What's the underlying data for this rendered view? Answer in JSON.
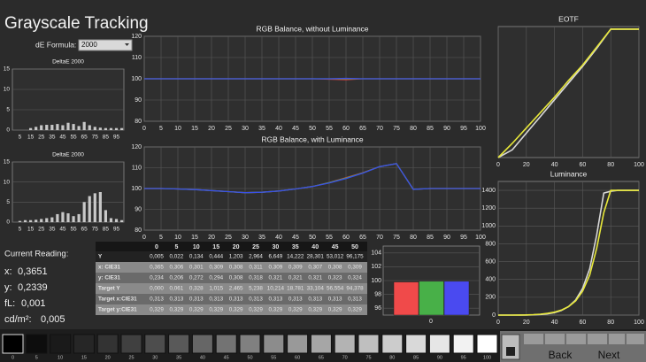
{
  "header": {
    "title": "Grayscale Tracking",
    "formula_label": "dE Formula:",
    "formula_value": "2000"
  },
  "deltae_top": {
    "type": "bar",
    "title": "DeltaE 2000",
    "color": "#c8c8c8",
    "x": [
      0,
      5,
      10,
      15,
      20,
      25,
      30,
      35,
      40,
      45,
      50,
      55,
      60,
      65,
      70,
      75,
      80,
      85,
      90,
      95,
      100
    ],
    "values": [
      0,
      0,
      0,
      0.5,
      0.8,
      1.2,
      1.3,
      1.3,
      1.5,
      1.2,
      1.8,
      1.5,
      1.0,
      2.0,
      1.2,
      0.8,
      0.6,
      0.5,
      0.5,
      0.5,
      0.5
    ],
    "xlim": [
      -2,
      102
    ],
    "xticks": [
      5,
      15,
      25,
      35,
      45,
      55,
      65,
      75,
      85,
      95
    ],
    "ylim": [
      0,
      15
    ],
    "yticks": [
      0,
      5,
      10,
      15
    ]
  },
  "deltae_bottom": {
    "type": "bar",
    "title": "DeltaE 2000",
    "color": "#c8c8c8",
    "x": [
      0,
      5,
      10,
      15,
      20,
      25,
      30,
      35,
      40,
      45,
      50,
      55,
      60,
      65,
      70,
      75,
      80,
      85,
      90,
      95,
      100
    ],
    "values": [
      0,
      0.3,
      0.5,
      0.5,
      0.6,
      0.8,
      1.0,
      1.2,
      2.0,
      2.5,
      2.2,
      1.5,
      2.0,
      5.0,
      6.5,
      7.2,
      7.5,
      3.0,
      1.0,
      0.8,
      0.5
    ],
    "xlim": [
      -2,
      102
    ],
    "xticks": [
      5,
      15,
      25,
      35,
      45,
      55,
      65,
      75,
      85,
      95
    ],
    "ylim": [
      0,
      15
    ],
    "yticks": [
      0,
      5,
      10,
      15
    ]
  },
  "rgb_balance": {
    "type": "line",
    "title": "RGB Balance, without Luminance",
    "x": [
      0,
      5,
      10,
      15,
      20,
      25,
      30,
      35,
      40,
      45,
      50,
      55,
      60,
      65,
      70,
      75,
      80,
      85,
      90,
      95,
      100
    ],
    "series": [
      {
        "color": "#e23b3b",
        "values": [
          100,
          100,
          100,
          100,
          100,
          100,
          100,
          100,
          100,
          100,
          100,
          99.8,
          99.6,
          100,
          100,
          100,
          100,
          100,
          100,
          100,
          100
        ]
      },
      {
        "color": "#3fbf3f",
        "values": [
          100,
          100,
          100,
          100,
          100,
          100,
          100,
          100,
          100,
          100,
          100,
          100,
          100,
          100,
          100,
          100,
          100,
          100,
          100,
          100,
          100
        ]
      },
      {
        "color": "#3a4fe8",
        "values": [
          100,
          100,
          100,
          100,
          100,
          100,
          100,
          100,
          100,
          100,
          100,
          100,
          100.2,
          100,
          100,
          100,
          100,
          100,
          100,
          100,
          100
        ]
      }
    ],
    "xlim": [
      0,
      100
    ],
    "xticks": [
      0,
      5,
      10,
      15,
      20,
      25,
      30,
      35,
      40,
      45,
      50,
      55,
      60,
      65,
      70,
      75,
      80,
      85,
      90,
      95,
      100
    ],
    "ylim": [
      80,
      120
    ],
    "yticks": [
      80,
      90,
      100,
      110,
      120
    ]
  },
  "rgb_balance_lum": {
    "type": "line",
    "title": "RGB Balance, with Luminance",
    "x": [
      0,
      5,
      10,
      15,
      20,
      25,
      30,
      35,
      40,
      45,
      50,
      55,
      60,
      65,
      70,
      75,
      80,
      85,
      90,
      95,
      100
    ],
    "series": [
      {
        "color": "#e23b3b",
        "values": [
          100,
          100,
          99.8,
          99.5,
          99,
          98.5,
          98,
          98.2,
          98.8,
          99.8,
          101,
          102.9,
          105.2,
          107.6,
          110.5,
          112,
          99.6,
          100,
          100,
          100,
          100
        ]
      },
      {
        "color": "#3fbf3f",
        "values": [
          100,
          100,
          99.8,
          99.5,
          99,
          98.5,
          98,
          98.2,
          98.8,
          99.8,
          101,
          102.8,
          105,
          107.5,
          110.5,
          112,
          99.6,
          100,
          100,
          100,
          100
        ]
      },
      {
        "color": "#3a4fe8",
        "values": [
          100,
          100,
          99.8,
          99.5,
          99,
          98.5,
          98,
          98.2,
          98.8,
          99.8,
          101,
          102.7,
          104.8,
          107.4,
          110.5,
          112,
          99.6,
          100,
          100,
          100,
          100
        ]
      }
    ],
    "xlim": [
      0,
      100
    ],
    "xticks": [
      0,
      5,
      10,
      15,
      20,
      25,
      30,
      35,
      40,
      45,
      50,
      55,
      60,
      65,
      70,
      75,
      80,
      85,
      90,
      95,
      100
    ],
    "ylim": [
      80,
      120
    ],
    "yticks": [
      80,
      90,
      100,
      110,
      120
    ]
  },
  "eotf": {
    "type": "line",
    "title": "EOTF",
    "x": [
      0,
      10,
      20,
      30,
      40,
      50,
      60,
      70,
      80,
      90,
      100
    ],
    "series": [
      {
        "color": "#d8d8d8",
        "values": [
          0,
          6,
          19,
          32,
          45,
          58,
          71,
          85,
          100,
          100,
          100
        ]
      },
      {
        "color": "#e8e83a",
        "values": [
          0,
          11,
          23,
          35,
          47,
          60,
          72,
          86,
          100,
          100,
          100
        ]
      }
    ],
    "xlim": [
      0,
      100
    ],
    "xticks": [
      0,
      20,
      40,
      60,
      80,
      100
    ],
    "ylim": [
      0,
      102
    ]
  },
  "luminance": {
    "type": "line",
    "title": "Luminance",
    "x": [
      0,
      5,
      10,
      15,
      20,
      25,
      30,
      35,
      40,
      45,
      50,
      55,
      60,
      65,
      70,
      75,
      80,
      85,
      90,
      95,
      100
    ],
    "series": [
      {
        "color": "#d8d8d8",
        "values": [
          0,
          0,
          0,
          0,
          1,
          3,
          7,
          14,
          28,
          53,
          96,
          170,
          300,
          520,
          900,
          1370,
          1390,
          1400,
          1400,
          1400,
          1400
        ]
      },
      {
        "color": "#e8e83a",
        "values": [
          0,
          0,
          0,
          1,
          2,
          5,
          10,
          19,
          33,
          57,
          94,
          160,
          270,
          450,
          750,
          1150,
          1400,
          1400,
          1400,
          1400,
          1400
        ]
      }
    ],
    "xlim": [
      0,
      100
    ],
    "xticks": [
      0,
      20,
      40,
      60,
      80,
      100
    ],
    "ylim": [
      0,
      1500
    ],
    "yticks": [
      0,
      200,
      400,
      600,
      800,
      1000,
      1200,
      1400
    ]
  },
  "reading": {
    "title": "Current Reading:",
    "items": [
      [
        "x:",
        "0,3651"
      ],
      [
        "y:",
        "0,2339"
      ],
      [
        "fL:",
        "0,001"
      ],
      [
        "cd/m²:",
        "0,005"
      ]
    ]
  },
  "table": {
    "columns": [
      "0",
      "5",
      "10",
      "15",
      "20",
      "25",
      "30",
      "35",
      "40",
      "45",
      "50"
    ],
    "rows": [
      [
        "Y",
        "0,005",
        "0,022",
        "0,134",
        "0,444",
        "1,203",
        "2,964",
        "6,649",
        "14,222",
        "28,301",
        "53,012",
        "96,175"
      ],
      [
        "x: CIE31",
        "0,365",
        "0,306",
        "0,301",
        "0,309",
        "0,308",
        "0,311",
        "0,309",
        "0,309",
        "0,307",
        "0,308",
        "0,309"
      ],
      [
        "y: CIE31",
        "0,234",
        "0,206",
        "0,272",
        "0,294",
        "0,308",
        "0,318",
        "0,321",
        "0,321",
        "0,321",
        "0,323",
        "0,324"
      ],
      [
        "Target Y",
        "0,000",
        "0,061",
        "0,328",
        "1,015",
        "2,465",
        "5,238",
        "10,214",
        "18,781",
        "33,104",
        "56,554",
        "94,378"
      ],
      [
        "Target x:CIE31",
        "0,313",
        "0,313",
        "0,313",
        "0,313",
        "0,313",
        "0,313",
        "0,313",
        "0,313",
        "0,313",
        "0,313",
        "0,313"
      ],
      [
        "Target y:CIE31",
        "0,329",
        "0,329",
        "0,329",
        "0,329",
        "0,329",
        "0,329",
        "0,329",
        "0,329",
        "0,329",
        "0,329",
        "0,329"
      ]
    ]
  },
  "rgb_bars": {
    "type": "bar",
    "values": [
      99.8,
      99.9,
      99.9
    ],
    "colors": [
      "#f04a4a",
      "#48b048",
      "#4a4af0"
    ],
    "ylim": [
      95,
      105
    ],
    "yticks": [
      96,
      98,
      100,
      102,
      104
    ],
    "x_label": "0"
  },
  "swatches": [
    0,
    5,
    10,
    15,
    20,
    25,
    30,
    35,
    40,
    45,
    50,
    55,
    60,
    65,
    70,
    75,
    80,
    85,
    90,
    95,
    100
  ],
  "buttons": [
    "Back",
    "Next"
  ]
}
